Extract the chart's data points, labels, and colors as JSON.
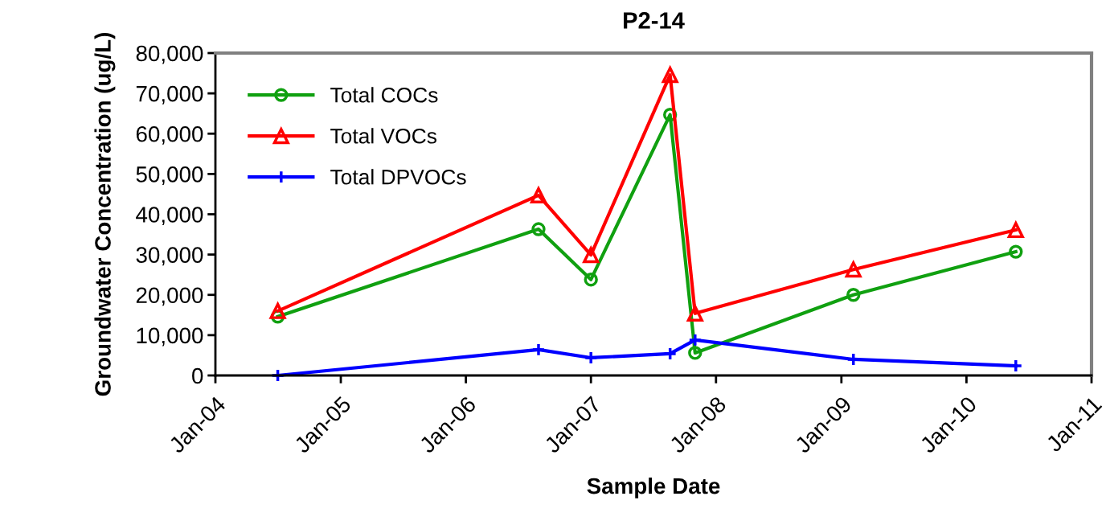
{
  "chart_data": {
    "type": "line",
    "title": "P2-14",
    "xlabel": "Sample Date",
    "ylabel": "Groundwater Concentration (ug/L)",
    "x": [
      "2004-07-01",
      "2006-08-01",
      "2007-01-01",
      "2007-08-20",
      "2007-11-01",
      "2009-02-05",
      "2010-05-25"
    ],
    "series": [
      {
        "name": "Total COCs",
        "color": "#10a010",
        "marker": "circle",
        "values": [
          14600,
          36300,
          23800,
          64700,
          5600,
          20000,
          30700
        ]
      },
      {
        "name": "Total VOCs",
        "color": "#ff0000",
        "marker": "triangle",
        "values": [
          16000,
          44700,
          29900,
          74600,
          15400,
          26300,
          36100
        ]
      },
      {
        "name": "Total DPVOCs",
        "color": "#0000ff",
        "marker": "cross",
        "values": [
          0,
          6400,
          4400,
          5400,
          8800,
          4000,
          2400
        ]
      }
    ],
    "xlim": [
      "2004-01-01",
      "2011-01-01"
    ],
    "xticks": [
      {
        "value": "2004-01-01",
        "label": "Jan-04"
      },
      {
        "value": "2005-01-01",
        "label": "Jan-05"
      },
      {
        "value": "2006-01-01",
        "label": "Jan-06"
      },
      {
        "value": "2007-01-01",
        "label": "Jan-07"
      },
      {
        "value": "2008-01-01",
        "label": "Jan-08"
      },
      {
        "value": "2009-01-01",
        "label": "Jan-09"
      },
      {
        "value": "2010-01-01",
        "label": "Jan-10"
      },
      {
        "value": "2011-01-01",
        "label": "Jan-11"
      }
    ],
    "ylim": [
      0,
      80000
    ],
    "yticks": [
      {
        "value": 0,
        "label": "0"
      },
      {
        "value": 10000,
        "label": "10,000"
      },
      {
        "value": 20000,
        "label": "20,000"
      },
      {
        "value": 30000,
        "label": "30,000"
      },
      {
        "value": 40000,
        "label": "40,000"
      },
      {
        "value": 50000,
        "label": "50,000"
      },
      {
        "value": 60000,
        "label": "60,000"
      },
      {
        "value": 70000,
        "label": "70,000"
      },
      {
        "value": 80000,
        "label": "80,000"
      }
    ],
    "grid": false,
    "legend": "top left",
    "line_style": "solid"
  }
}
